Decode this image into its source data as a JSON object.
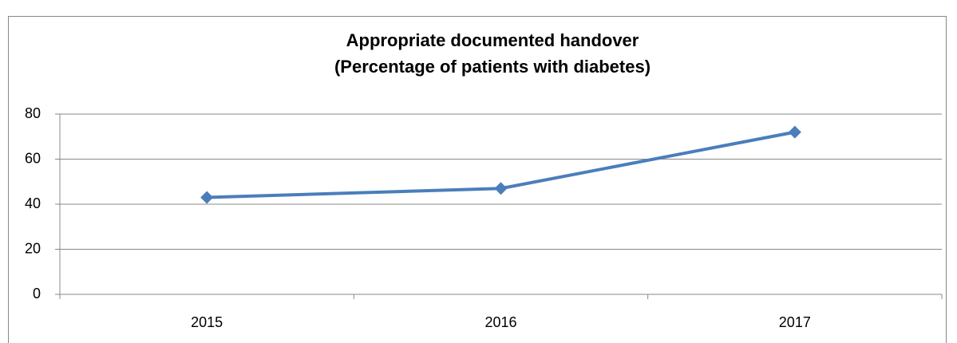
{
  "chart_data": {
    "type": "line",
    "title": "Appropriate documented handover",
    "subtitle": "(Percentage of patients with diabetes)",
    "categories": [
      "2015",
      "2016",
      "2017"
    ],
    "series": [
      {
        "name": "Appropriate documented handover",
        "color": "#4a7ebb",
        "values": [
          43,
          47,
          72
        ]
      }
    ],
    "ylim": [
      0,
      80
    ],
    "yticks": [
      0,
      20,
      40,
      60,
      80
    ],
    "grid": true
  }
}
